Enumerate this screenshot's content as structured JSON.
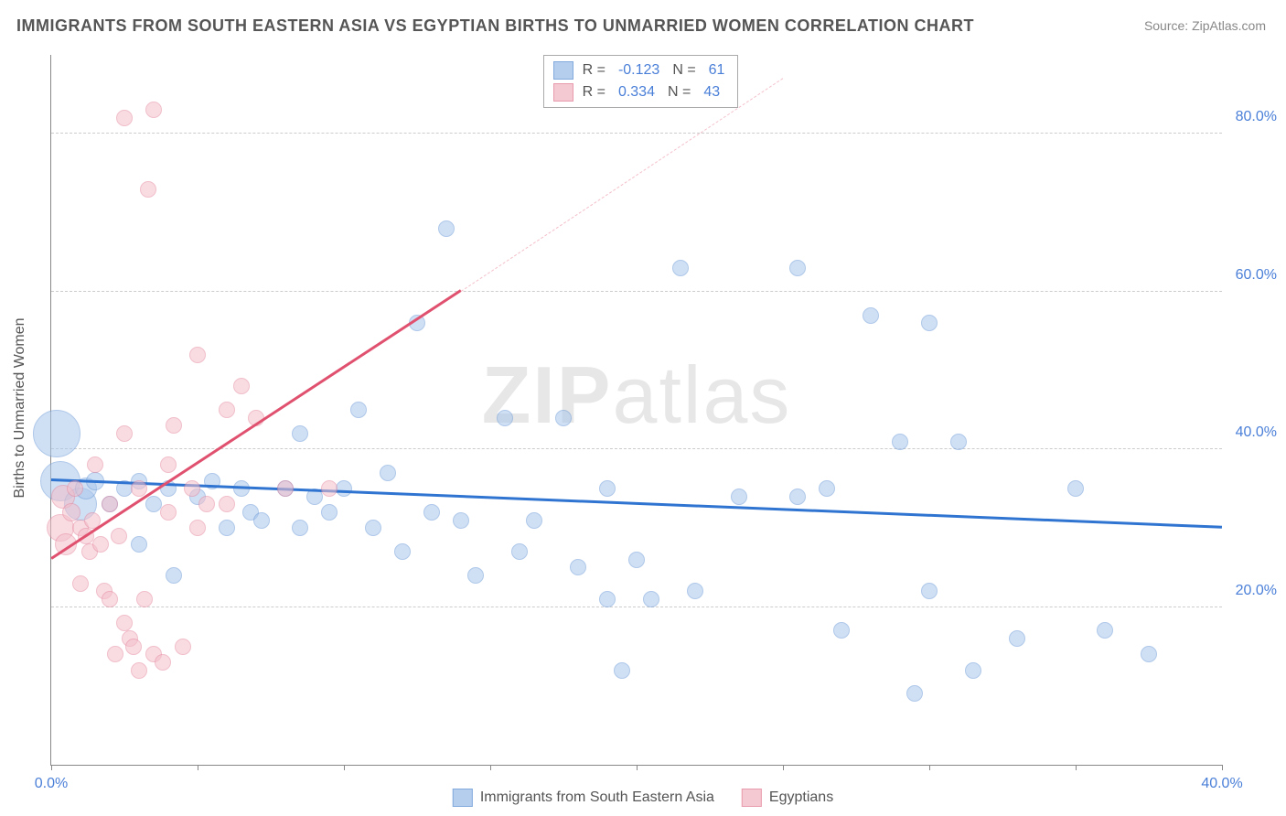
{
  "title": "IMMIGRANTS FROM SOUTH EASTERN ASIA VS EGYPTIAN BIRTHS TO UNMARRIED WOMEN CORRELATION CHART",
  "source": "Source: ZipAtlas.com",
  "ylabel": "Births to Unmarried Women",
  "watermark_a": "ZIP",
  "watermark_b": "atlas",
  "chart": {
    "type": "scatter",
    "xlim": [
      0,
      40
    ],
    "ylim": [
      0,
      90
    ],
    "xtick_positions": [
      0,
      5,
      10,
      15,
      20,
      25,
      30,
      35,
      40
    ],
    "xtick_labels_shown": {
      "0": "0.0%",
      "40": "40.0%"
    },
    "ytick_positions": [
      20,
      40,
      60,
      80
    ],
    "ytick_labels": [
      "20.0%",
      "40.0%",
      "60.0%",
      "80.0%"
    ],
    "grid_color": "#cccccc",
    "axis_color": "#888888",
    "background_color": "#ffffff",
    "tick_label_color": "#4a7fd8",
    "series": [
      {
        "name": "Immigrants from South Eastern Asia",
        "fill_color": "#a9c6ec",
        "stroke_color": "#6e9cd8",
        "fill_opacity": 0.55,
        "marker_radius": 9,
        "correlation_R": "-0.123",
        "correlation_N": "61",
        "trend": {
          "x1": 0,
          "y1": 36,
          "x2": 40,
          "y2": 30,
          "color": "#2f74d0",
          "width": 2.5,
          "dash": false
        },
        "points": [
          {
            "x": 0.2,
            "y": 42,
            "r": 26
          },
          {
            "x": 0.3,
            "y": 36,
            "r": 22
          },
          {
            "x": 1.0,
            "y": 33,
            "r": 18
          },
          {
            "x": 1.2,
            "y": 35,
            "r": 12
          },
          {
            "x": 1.5,
            "y": 36,
            "r": 10
          },
          {
            "x": 2.0,
            "y": 33,
            "r": 9
          },
          {
            "x": 2.5,
            "y": 35,
            "r": 9
          },
          {
            "x": 3.0,
            "y": 36,
            "r": 9
          },
          {
            "x": 3.0,
            "y": 28,
            "r": 9
          },
          {
            "x": 3.5,
            "y": 33,
            "r": 9
          },
          {
            "x": 4.0,
            "y": 35,
            "r": 9
          },
          {
            "x": 4.2,
            "y": 24,
            "r": 9
          },
          {
            "x": 5.0,
            "y": 34,
            "r": 9
          },
          {
            "x": 5.5,
            "y": 36,
            "r": 9
          },
          {
            "x": 6.0,
            "y": 30,
            "r": 9
          },
          {
            "x": 6.5,
            "y": 35,
            "r": 9
          },
          {
            "x": 6.8,
            "y": 32,
            "r": 9
          },
          {
            "x": 7.2,
            "y": 31,
            "r": 9
          },
          {
            "x": 8.0,
            "y": 35,
            "r": 9
          },
          {
            "x": 8.5,
            "y": 42,
            "r": 9
          },
          {
            "x": 8.5,
            "y": 30,
            "r": 9
          },
          {
            "x": 9.0,
            "y": 34,
            "r": 9
          },
          {
            "x": 9.5,
            "y": 32,
            "r": 9
          },
          {
            "x": 10.0,
            "y": 35,
            "r": 9
          },
          {
            "x": 10.5,
            "y": 45,
            "r": 9
          },
          {
            "x": 11.0,
            "y": 30,
            "r": 9
          },
          {
            "x": 11.5,
            "y": 37,
            "r": 9
          },
          {
            "x": 12.0,
            "y": 27,
            "r": 9
          },
          {
            "x": 12.5,
            "y": 56,
            "r": 9
          },
          {
            "x": 13.0,
            "y": 32,
            "r": 9
          },
          {
            "x": 13.5,
            "y": 68,
            "r": 9
          },
          {
            "x": 14.0,
            "y": 31,
            "r": 9
          },
          {
            "x": 14.5,
            "y": 24,
            "r": 9
          },
          {
            "x": 15.5,
            "y": 44,
            "r": 9
          },
          {
            "x": 16.0,
            "y": 27,
            "r": 9
          },
          {
            "x": 16.5,
            "y": 31,
            "r": 9
          },
          {
            "x": 17.5,
            "y": 44,
            "r": 9
          },
          {
            "x": 18.0,
            "y": 25,
            "r": 9
          },
          {
            "x": 19.0,
            "y": 21,
            "r": 9
          },
          {
            "x": 19.0,
            "y": 35,
            "r": 9
          },
          {
            "x": 19.5,
            "y": 12,
            "r": 9
          },
          {
            "x": 20.0,
            "y": 26,
            "r": 9
          },
          {
            "x": 20.5,
            "y": 21,
            "r": 9
          },
          {
            "x": 21.5,
            "y": 63,
            "r": 9
          },
          {
            "x": 22.0,
            "y": 22,
            "r": 9
          },
          {
            "x": 23.5,
            "y": 34,
            "r": 9
          },
          {
            "x": 25.5,
            "y": 34,
            "r": 9
          },
          {
            "x": 25.5,
            "y": 63,
            "r": 9
          },
          {
            "x": 26.5,
            "y": 35,
            "r": 9
          },
          {
            "x": 27.0,
            "y": 17,
            "r": 9
          },
          {
            "x": 28.0,
            "y": 57,
            "r": 9
          },
          {
            "x": 29.0,
            "y": 41,
            "r": 9
          },
          {
            "x": 29.5,
            "y": 9,
            "r": 9
          },
          {
            "x": 30.0,
            "y": 56,
            "r": 9
          },
          {
            "x": 30.0,
            "y": 22,
            "r": 9
          },
          {
            "x": 31.0,
            "y": 41,
            "r": 9
          },
          {
            "x": 31.5,
            "y": 12,
            "r": 9
          },
          {
            "x": 33.0,
            "y": 16,
            "r": 9
          },
          {
            "x": 35.0,
            "y": 35,
            "r": 9
          },
          {
            "x": 36.0,
            "y": 17,
            "r": 9
          },
          {
            "x": 37.5,
            "y": 14,
            "r": 9
          }
        ]
      },
      {
        "name": "Egyptians",
        "fill_color": "#f4c0cb",
        "stroke_color": "#e68aa0",
        "fill_opacity": 0.55,
        "marker_radius": 9,
        "correlation_R": "0.334",
        "correlation_N": "43",
        "trend": {
          "x1": 0,
          "y1": 26,
          "x2": 14,
          "y2": 60,
          "color": "#e0516f",
          "width": 2.5,
          "dash": false
        },
        "trend_extension": {
          "x1": 14,
          "y1": 60,
          "x2": 25,
          "y2": 87,
          "color": "#f4c0cb",
          "width": 1.5,
          "dash": true
        },
        "points": [
          {
            "x": 0.3,
            "y": 30,
            "r": 15
          },
          {
            "x": 0.4,
            "y": 34,
            "r": 13
          },
          {
            "x": 0.5,
            "y": 28,
            "r": 12
          },
          {
            "x": 0.7,
            "y": 32,
            "r": 10
          },
          {
            "x": 0.8,
            "y": 35,
            "r": 9
          },
          {
            "x": 1.0,
            "y": 30,
            "r": 9
          },
          {
            "x": 1.0,
            "y": 23,
            "r": 9
          },
          {
            "x": 1.2,
            "y": 29,
            "r": 9
          },
          {
            "x": 1.3,
            "y": 27,
            "r": 9
          },
          {
            "x": 1.4,
            "y": 31,
            "r": 9
          },
          {
            "x": 1.5,
            "y": 38,
            "r": 9
          },
          {
            "x": 1.7,
            "y": 28,
            "r": 9
          },
          {
            "x": 1.8,
            "y": 22,
            "r": 9
          },
          {
            "x": 2.0,
            "y": 33,
            "r": 9
          },
          {
            "x": 2.0,
            "y": 21,
            "r": 9
          },
          {
            "x": 2.2,
            "y": 14,
            "r": 9
          },
          {
            "x": 2.3,
            "y": 29,
            "r": 9
          },
          {
            "x": 2.5,
            "y": 42,
            "r": 9
          },
          {
            "x": 2.5,
            "y": 18,
            "r": 9
          },
          {
            "x": 2.5,
            "y": 82,
            "r": 9
          },
          {
            "x": 2.7,
            "y": 16,
            "r": 9
          },
          {
            "x": 2.8,
            "y": 15,
            "r": 9
          },
          {
            "x": 3.0,
            "y": 35,
            "r": 9
          },
          {
            "x": 3.0,
            "y": 12,
            "r": 9
          },
          {
            "x": 3.2,
            "y": 21,
            "r": 9
          },
          {
            "x": 3.3,
            "y": 73,
            "r": 9
          },
          {
            "x": 3.5,
            "y": 83,
            "r": 9
          },
          {
            "x": 3.5,
            "y": 14,
            "r": 9
          },
          {
            "x": 3.8,
            "y": 13,
            "r": 9
          },
          {
            "x": 4.0,
            "y": 38,
            "r": 9
          },
          {
            "x": 4.0,
            "y": 32,
            "r": 9
          },
          {
            "x": 4.2,
            "y": 43,
            "r": 9
          },
          {
            "x": 4.5,
            "y": 15,
            "r": 9
          },
          {
            "x": 4.8,
            "y": 35,
            "r": 9
          },
          {
            "x": 5.0,
            "y": 30,
            "r": 9
          },
          {
            "x": 5.0,
            "y": 52,
            "r": 9
          },
          {
            "x": 5.3,
            "y": 33,
            "r": 9
          },
          {
            "x": 6.0,
            "y": 45,
            "r": 9
          },
          {
            "x": 6.0,
            "y": 33,
            "r": 9
          },
          {
            "x": 6.5,
            "y": 48,
            "r": 9
          },
          {
            "x": 7.0,
            "y": 44,
            "r": 9
          },
          {
            "x": 8.0,
            "y": 35,
            "r": 9
          },
          {
            "x": 9.5,
            "y": 35,
            "r": 9
          }
        ]
      }
    ]
  },
  "legend_correlation_label_R": "R =",
  "legend_correlation_label_N": "N =",
  "bottom_legend": {
    "items": [
      {
        "swatch_fill": "#a9c6ec",
        "swatch_stroke": "#6e9cd8",
        "label": "Immigrants from South Eastern Asia"
      },
      {
        "swatch_fill": "#f4c0cb",
        "swatch_stroke": "#e68aa0",
        "label": "Egyptians"
      }
    ]
  }
}
